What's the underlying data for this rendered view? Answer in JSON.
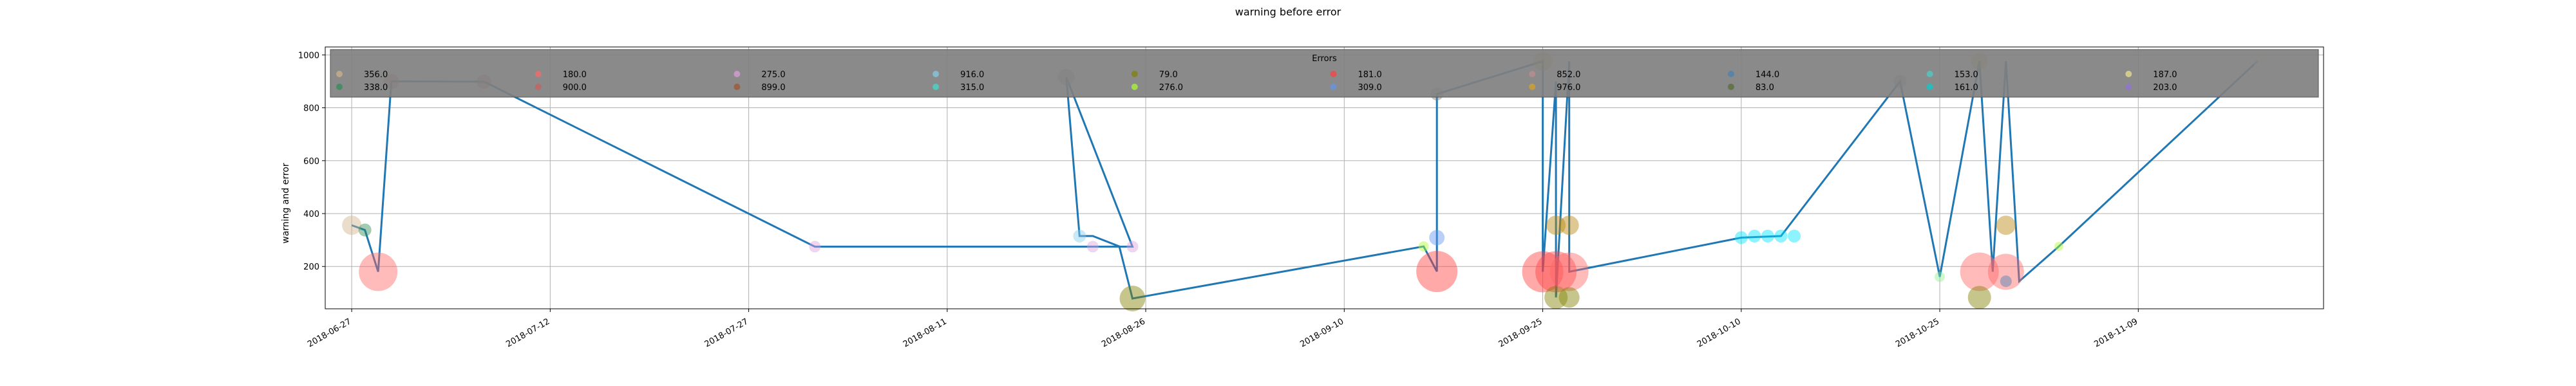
{
  "chart_data": {
    "type": "scatter",
    "title": "warning before error",
    "xlabel": "",
    "ylabel": "warning and error",
    "x_range": [
      "2018-06-25",
      "2018-11-23"
    ],
    "ylim": [
      40,
      1030
    ],
    "yticks": [
      200,
      400,
      600,
      800,
      1000
    ],
    "xticks": [
      "2018-06-27",
      "2018-07-12",
      "2018-07-27",
      "2018-08-11",
      "2018-08-26",
      "2018-09-10",
      "2018-09-25",
      "2018-10-10",
      "2018-10-25",
      "2018-11-09"
    ],
    "grid": true,
    "line_color": "#1f77b4",
    "legend": {
      "title": "Errors",
      "placement": "top",
      "background": "#808080",
      "entries": [
        {
          "label": "356.0",
          "color": "#d2b48c"
        },
        {
          "label": "338.0",
          "color": "#2e8b57"
        },
        {
          "label": "180.0",
          "color": "#ff6666"
        },
        {
          "label": "900.0",
          "color": "#cd5c5c"
        },
        {
          "label": "275.0",
          "color": "#dda0dd"
        },
        {
          "label": "899.0",
          "color": "#a0522d"
        },
        {
          "label": "916.0",
          "color": "#87ceeb"
        },
        {
          "label": "315.0",
          "color": "#40e0d0"
        },
        {
          "label": "79.0",
          "color": "#808000"
        },
        {
          "label": "276.0",
          "color": "#adff2f"
        },
        {
          "label": "181.0",
          "color": "#ff4040"
        },
        {
          "label": "309.0",
          "color": "#6495ed"
        },
        {
          "label": "852.0",
          "color": "#bc8f8f"
        },
        {
          "label": "976.0",
          "color": "#daa520"
        },
        {
          "label": "144.0",
          "color": "#4682b4"
        },
        {
          "label": "83.0",
          "color": "#556b2f"
        },
        {
          "label": "153.0",
          "color": "#48d1cc"
        },
        {
          "label": "161.0",
          "color": "#00ced1"
        },
        {
          "label": "187.0",
          "color": "#f0e68c"
        },
        {
          "label": "203.0",
          "color": "#9370db"
        }
      ]
    },
    "line_series": [
      {
        "x": "2018-06-27",
        "y": 356
      },
      {
        "x": "2018-06-28",
        "y": 338
      },
      {
        "x": "2018-06-29",
        "y": 180
      },
      {
        "x": "2018-06-30",
        "y": 900
      },
      {
        "x": "2018-07-07",
        "y": 899
      },
      {
        "x": "2018-08-01",
        "y": 275
      },
      {
        "x": "2018-08-22",
        "y": 275
      },
      {
        "x": "2018-08-25",
        "y": 275
      },
      {
        "x": "2018-08-20",
        "y": 916
      },
      {
        "x": "2018-08-21",
        "y": 315
      },
      {
        "x": "2018-08-22",
        "y": 315
      },
      {
        "x": "2018-08-24",
        "y": 276
      },
      {
        "x": "2018-08-25",
        "y": 79
      },
      {
        "x": "2018-09-16",
        "y": 276
      },
      {
        "x": "2018-09-17",
        "y": 181
      },
      {
        "x": "2018-09-17",
        "y": 852
      },
      {
        "x": "2018-09-25",
        "y": 976
      },
      {
        "x": "2018-09-25",
        "y": 180
      },
      {
        "x": "2018-09-26",
        "y": 900
      },
      {
        "x": "2018-09-26",
        "y": 83
      },
      {
        "x": "2018-09-27",
        "y": 976
      },
      {
        "x": "2018-09-27",
        "y": 180
      },
      {
        "x": "2018-10-10",
        "y": 309
      },
      {
        "x": "2018-10-13",
        "y": 315
      },
      {
        "x": "2018-10-22",
        "y": 900
      },
      {
        "x": "2018-10-25",
        "y": 161
      },
      {
        "x": "2018-10-28",
        "y": 976
      },
      {
        "x": "2018-10-29",
        "y": 180
      },
      {
        "x": "2018-10-30",
        "y": 976
      },
      {
        "x": "2018-10-31",
        "y": 144
      },
      {
        "x": "2018-11-03",
        "y": 276
      },
      {
        "x": "2018-11-18",
        "y": 976
      }
    ],
    "points": [
      {
        "x": "2018-06-27",
        "y": 356,
        "color": "#d2b48c",
        "size": 30
      },
      {
        "x": "2018-06-28",
        "y": 338,
        "color": "#2e8b57",
        "size": 20
      },
      {
        "x": "2018-06-29",
        "y": 180,
        "color": "#ff6666",
        "size": 60
      },
      {
        "x": "2018-06-30",
        "y": 900,
        "color": "#cd5c5c",
        "size": 24
      },
      {
        "x": "2018-07-07",
        "y": 899,
        "color": "#a0522d",
        "size": 22
      },
      {
        "x": "2018-08-01",
        "y": 275,
        "color": "#dda0dd",
        "size": 18
      },
      {
        "x": "2018-08-22",
        "y": 275,
        "color": "#dda0dd",
        "size": 18
      },
      {
        "x": "2018-08-25",
        "y": 275,
        "color": "#dda0dd",
        "size": 18
      },
      {
        "x": "2018-08-20",
        "y": 916,
        "color": "#808080",
        "size": 26
      },
      {
        "x": "2018-08-21",
        "y": 315,
        "color": "#87ceeb",
        "size": 20
      },
      {
        "x": "2018-08-25",
        "y": 79,
        "color": "#808000",
        "size": 40
      },
      {
        "x": "2018-09-16",
        "y": 276,
        "color": "#adff2f",
        "size": 16
      },
      {
        "x": "2018-09-17",
        "y": 181,
        "color": "#ff4040",
        "size": 64
      },
      {
        "x": "2018-09-17",
        "y": 309,
        "color": "#6495ed",
        "size": 24
      },
      {
        "x": "2018-09-17",
        "y": 852,
        "color": "#808080",
        "size": 20
      },
      {
        "x": "2018-09-25",
        "y": 976,
        "color": "#daa520",
        "size": 30
      },
      {
        "x": "2018-09-25",
        "y": 180,
        "color": "#ff4040",
        "size": 64
      },
      {
        "x": "2018-09-26",
        "y": 180,
        "color": "#ff4040",
        "size": 64
      },
      {
        "x": "2018-09-26",
        "y": 356,
        "color": "#b8860b",
        "size": 30
      },
      {
        "x": "2018-09-26",
        "y": 83,
        "color": "#808000",
        "size": 36
      },
      {
        "x": "2018-09-27",
        "y": 180,
        "color": "#ff6666",
        "size": 60
      },
      {
        "x": "2018-09-27",
        "y": 356,
        "color": "#b8860b",
        "size": 30
      },
      {
        "x": "2018-09-27",
        "y": 83,
        "color": "#808000",
        "size": 32
      },
      {
        "x": "2018-10-10",
        "y": 309,
        "color": "#00e5ff",
        "size": 20
      },
      {
        "x": "2018-10-11",
        "y": 315,
        "color": "#00e5ff",
        "size": 20
      },
      {
        "x": "2018-10-12",
        "y": 315,
        "color": "#00e5ff",
        "size": 20
      },
      {
        "x": "2018-10-13",
        "y": 315,
        "color": "#00e5ff",
        "size": 20
      },
      {
        "x": "2018-10-14",
        "y": 315,
        "color": "#00e5ff",
        "size": 20
      },
      {
        "x": "2018-10-22",
        "y": 900,
        "color": "#808080",
        "size": 20
      },
      {
        "x": "2018-10-25",
        "y": 161,
        "color": "#90ee90",
        "size": 16
      },
      {
        "x": "2018-10-28",
        "y": 976,
        "color": "#daa520",
        "size": 26
      },
      {
        "x": "2018-10-28",
        "y": 180,
        "color": "#ff6666",
        "size": 60
      },
      {
        "x": "2018-10-28",
        "y": 83,
        "color": "#808000",
        "size": 36
      },
      {
        "x": "2018-10-30",
        "y": 180,
        "color": "#ff6666",
        "size": 56
      },
      {
        "x": "2018-10-30",
        "y": 356,
        "color": "#b8860b",
        "size": 30
      },
      {
        "x": "2018-10-30",
        "y": 144,
        "color": "#4682b4",
        "size": 18
      },
      {
        "x": "2018-11-03",
        "y": 276,
        "color": "#adff2f",
        "size": 14
      },
      {
        "x": "2018-11-18",
        "y": 976,
        "color": "#f0e68c",
        "size": 14
      }
    ]
  }
}
